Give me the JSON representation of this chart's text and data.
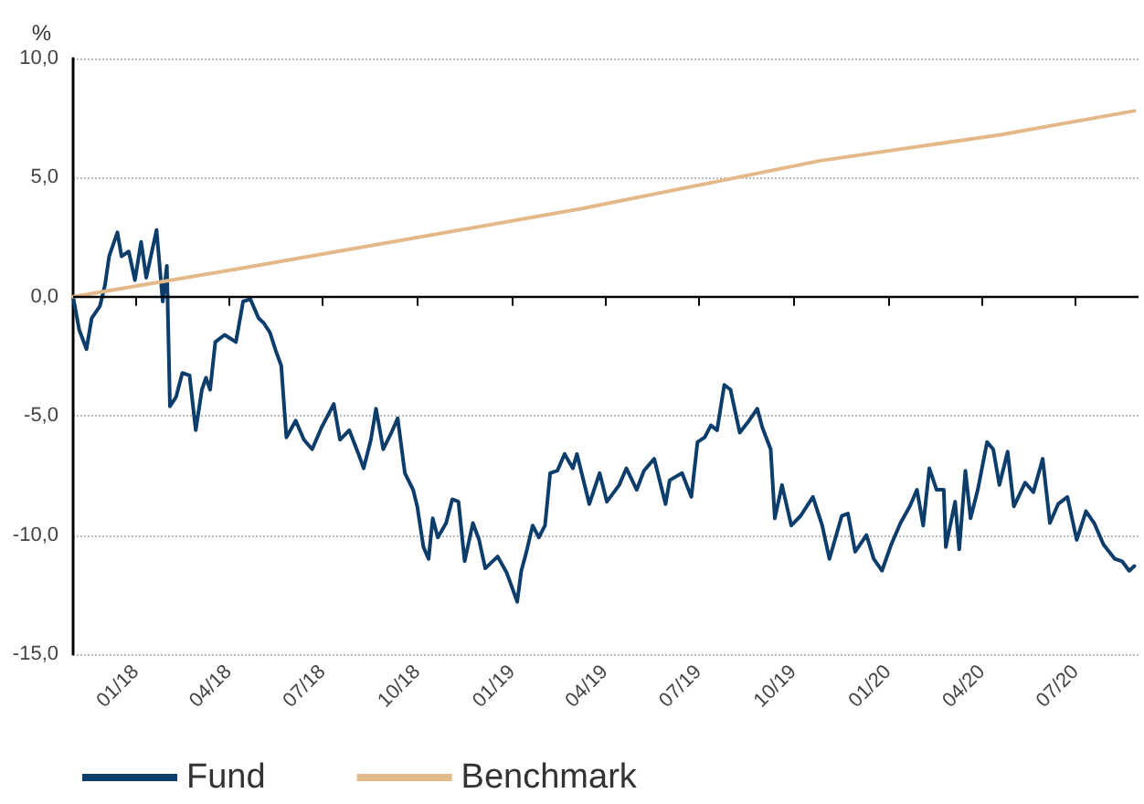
{
  "chart_data": {
    "type": "line",
    "ylabel": "%",
    "xlim": [
      "2017-11-01",
      "2020-08-31"
    ],
    "ylim": [
      -15,
      10
    ],
    "xticks": [
      {
        "value": "2018-01-01",
        "label": "01/18"
      },
      {
        "value": "2018-04-01",
        "label": "04/18"
      },
      {
        "value": "2018-07-01",
        "label": "07/18"
      },
      {
        "value": "2018-10-01",
        "label": "10/18"
      },
      {
        "value": "2019-01-01",
        "label": "01/19"
      },
      {
        "value": "2019-04-01",
        "label": "04/19"
      },
      {
        "value": "2019-07-01",
        "label": "07/19"
      },
      {
        "value": "2019-10-01",
        "label": "10/19"
      },
      {
        "value": "2020-01-01",
        "label": "01/20"
      },
      {
        "value": "2020-04-01",
        "label": "04/20"
      },
      {
        "value": "2020-07-01",
        "label": "07/20"
      }
    ],
    "yticks": [
      {
        "value": -15,
        "label": "-15,0"
      },
      {
        "value": -10,
        "label": "-10,0"
      },
      {
        "value": -5,
        "label": "-5,0"
      },
      {
        "value": 0,
        "label": "0,0"
      },
      {
        "value": 5,
        "label": "5,0"
      },
      {
        "value": 10,
        "label": "10,0"
      }
    ],
    "grid": "y",
    "legend": "bottom left",
    "marker": "none",
    "line_style": "solid",
    "ref_lines": [
      {
        "axis": "y",
        "value": 0,
        "color": "#000000"
      }
    ],
    "series": [
      {
        "name": "Fund",
        "color": "#0d3d6b",
        "x": [
          "2017-11-01",
          "2017-11-07",
          "2017-11-14",
          "2017-11-19",
          "2017-11-27",
          "2017-12-02",
          "2017-12-06",
          "2017-12-14",
          "2017-12-18",
          "2017-12-25",
          "2017-12-31",
          "2018-01-06",
          "2018-01-11",
          "2018-01-21",
          "2018-01-27",
          "2018-01-31",
          "2018-02-03",
          "2018-02-09",
          "2018-02-15",
          "2018-02-22",
          "2018-02-28",
          "2018-03-06",
          "2018-03-10",
          "2018-03-14",
          "2018-03-19",
          "2018-03-28",
          "2018-04-08",
          "2018-04-15",
          "2018-04-22",
          "2018-04-30",
          "2018-05-05",
          "2018-05-11",
          "2018-05-17",
          "2018-05-22",
          "2018-05-27",
          "2018-06-05",
          "2018-06-13",
          "2018-06-21",
          "2018-06-30",
          "2018-07-12",
          "2018-07-18",
          "2018-07-27",
          "2018-08-05",
          "2018-08-10",
          "2018-08-17",
          "2018-08-22",
          "2018-08-29",
          "2018-09-06",
          "2018-09-12",
          "2018-09-19",
          "2018-09-27",
          "2018-10-01",
          "2018-10-07",
          "2018-10-12",
          "2018-10-16",
          "2018-10-21",
          "2018-10-29",
          "2018-11-04",
          "2018-11-10",
          "2018-11-16",
          "2018-11-24",
          "2018-11-30",
          "2018-12-06",
          "2018-12-18",
          "2018-12-27",
          "2019-01-06",
          "2019-01-10",
          "2019-01-15",
          "2019-01-21",
          "2019-01-27",
          "2019-02-02",
          "2019-02-07",
          "2019-02-14",
          "2019-02-21",
          "2019-03-01",
          "2019-03-05",
          "2019-03-17",
          "2019-03-27",
          "2019-04-03",
          "2019-04-15",
          "2019-04-22",
          "2019-05-02",
          "2019-05-09",
          "2019-05-19",
          "2019-05-30",
          "2019-06-03",
          "2019-06-15",
          "2019-06-24",
          "2019-06-30",
          "2019-07-07",
          "2019-07-13",
          "2019-07-19",
          "2019-07-26",
          "2019-08-01",
          "2019-08-10",
          "2019-08-19",
          "2019-08-27",
          "2019-09-01",
          "2019-09-09",
          "2019-09-13",
          "2019-09-20",
          "2019-09-29",
          "2019-10-08",
          "2019-10-20",
          "2019-10-29",
          "2019-11-05",
          "2019-11-17",
          "2019-11-23",
          "2019-11-30",
          "2019-12-11",
          "2019-12-18",
          "2019-12-26",
          "2020-01-04",
          "2020-01-13",
          "2020-01-22",
          "2020-01-29",
          "2020-02-04",
          "2020-02-10",
          "2020-02-17",
          "2020-02-24",
          "2020-02-26",
          "2020-03-06",
          "2020-03-10",
          "2020-03-16",
          "2020-03-21",
          "2020-03-28",
          "2020-04-06",
          "2020-04-12",
          "2020-04-18",
          "2020-04-26",
          "2020-05-02",
          "2020-05-13",
          "2020-05-21",
          "2020-05-30",
          "2020-06-06",
          "2020-06-14",
          "2020-06-23",
          "2020-07-02",
          "2020-07-11",
          "2020-07-19",
          "2020-07-28",
          "2020-08-08",
          "2020-08-15",
          "2020-08-22",
          "2020-08-27"
        ],
        "values": [
          0,
          -1.4,
          -2.2,
          -0.9,
          -0.4,
          0.5,
          1.7,
          2.7,
          1.7,
          1.9,
          0.7,
          2.3,
          0.8,
          2.8,
          -0.2,
          1.3,
          -4.6,
          -4.2,
          -3.2,
          -3.3,
          -5.6,
          -3.9,
          -3.4,
          -3.9,
          -1.9,
          -1.6,
          -1.9,
          -0.2,
          -0.1,
          -0.9,
          -1.1,
          -1.5,
          -2.3,
          -2.9,
          -5.9,
          -5.2,
          -6.0,
          -6.4,
          -5.5,
          -4.5,
          -6.0,
          -5.6,
          -6.6,
          -7.2,
          -6.0,
          -4.7,
          -6.4,
          -5.7,
          -5.1,
          -7.4,
          -8.1,
          -8.8,
          -10.5,
          -11.0,
          -9.3,
          -10.1,
          -9.5,
          -8.5,
          -8.6,
          -11.1,
          -9.5,
          -10.2,
          -11.4,
          -10.9,
          -11.6,
          -12.8,
          -11.5,
          -10.7,
          -9.6,
          -10.1,
          -9.6,
          -7.4,
          -7.3,
          -6.6,
          -7.2,
          -6.6,
          -8.7,
          -7.4,
          -8.6,
          -7.9,
          -7.2,
          -8.1,
          -7.3,
          -6.8,
          -8.7,
          -7.7,
          -7.4,
          -8.4,
          -6.1,
          -5.9,
          -5.4,
          -5.6,
          -3.7,
          -3.9,
          -5.7,
          -5.2,
          -4.7,
          -5.5,
          -6.4,
          -9.3,
          -7.9,
          -9.6,
          -9.2,
          -8.4,
          -9.6,
          -11.0,
          -9.2,
          -9.1,
          -10.7,
          -10.0,
          -11.0,
          -11.5,
          -10.4,
          -9.5,
          -8.8,
          -8.1,
          -9.6,
          -7.2,
          -8.1,
          -8.1,
          -10.5,
          -8.6,
          -10.6,
          -7.3,
          -9.3,
          -8.1,
          -6.1,
          -6.4,
          -7.9,
          -6.5,
          -8.8,
          -7.8,
          -8.2,
          -6.8,
          -9.5,
          -8.7,
          -8.4,
          -10.2,
          -9.0,
          -9.5,
          -10.4,
          -11.0,
          -11.1,
          -11.5,
          -11.3
        ]
      },
      {
        "name": "Benchmark",
        "color": "#e4b98a",
        "x": [
          "2017-11-01",
          "2018-04-14",
          "2019-03-10",
          "2019-10-26",
          "2020-04-19",
          "2020-08-27"
        ],
        "values": [
          0,
          1.2,
          3.7,
          5.7,
          6.8,
          7.8
        ]
      }
    ]
  }
}
